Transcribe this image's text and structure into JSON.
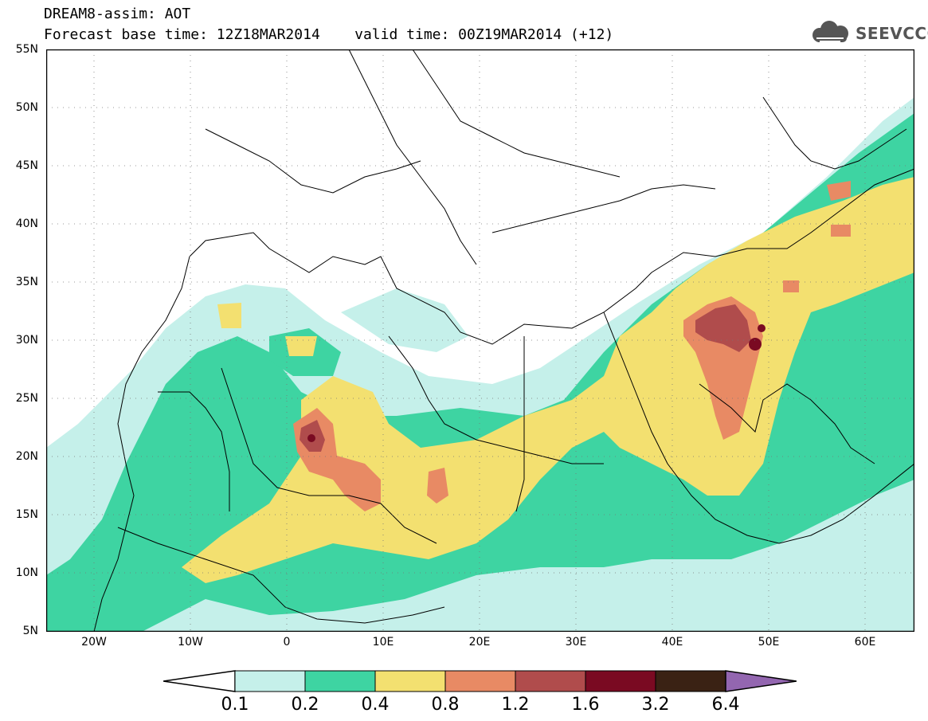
{
  "title": {
    "line1": "DREAM8-assim: AOT",
    "line2": "Forecast base time: 12Z18MAR2014    valid time: 00Z19MAR2014 (+12)"
  },
  "logo": {
    "text": "SEEVCCC",
    "icon": "cloud-icon"
  },
  "map": {
    "extent": {
      "lon": [
        -25,
        65
      ],
      "lat": [
        5,
        55
      ]
    },
    "lat_labels": [
      "55N",
      "50N",
      "45N",
      "40N",
      "35N",
      "30N",
      "25N",
      "20N",
      "15N",
      "10N",
      "5N"
    ],
    "lon_labels": [
      "20W",
      "10W",
      "0",
      "10E",
      "20E",
      "30E",
      "40E",
      "50E",
      "60E"
    ],
    "grid": true,
    "field": "Aerosol Optical Thickness (AOT)"
  },
  "colorbar": {
    "labels": [
      "0.1",
      "0.2",
      "0.4",
      "0.8",
      "1.2",
      "1.6",
      "3.2",
      "6.4"
    ],
    "colors": [
      "#ffffff",
      "#c5f0ea",
      "#3ed4a2",
      "#f3e070",
      "#e88a64",
      "#b04c4c",
      "#7a0a22",
      "#3a2214",
      "#9366b0"
    ]
  }
}
